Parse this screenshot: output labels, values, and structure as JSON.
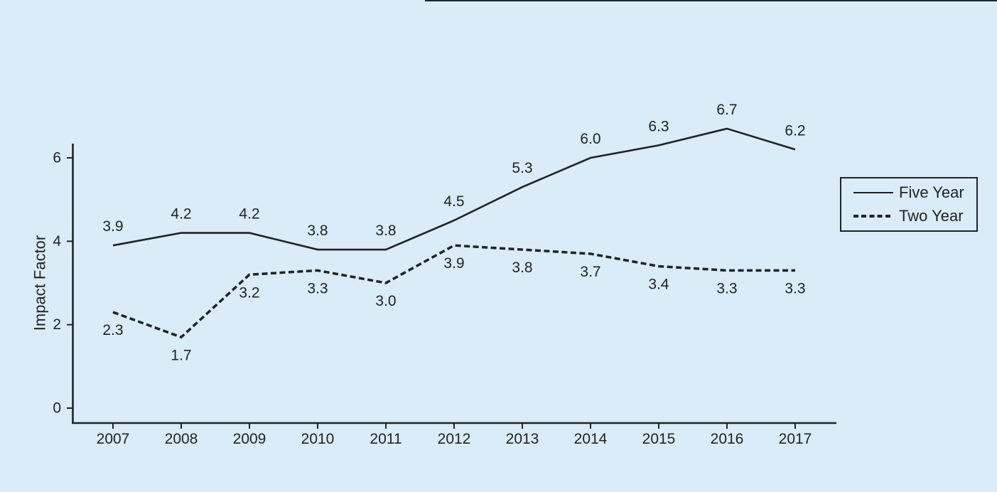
{
  "page": {
    "background_color": "#d9ecf7",
    "top_edge_bar_color": "#1a2a33",
    "ink_color": "#222222"
  },
  "chart_data": {
    "type": "line",
    "ylabel": "Impact Factor",
    "categories": [
      "2007",
      "2008",
      "2009",
      "2010",
      "2011",
      "2012",
      "2013",
      "2014",
      "2015",
      "2016",
      "2017"
    ],
    "y_ticks": [
      0,
      2,
      4,
      6
    ],
    "ylim": [
      0,
      6.3
    ],
    "grid": false,
    "legend_position": "right",
    "series": [
      {
        "name": "Five Year",
        "style": "solid",
        "label_position": "above",
        "values": [
          3.9,
          4.2,
          4.2,
          3.8,
          3.8,
          4.5,
          5.3,
          6.0,
          6.3,
          6.7,
          6.2
        ]
      },
      {
        "name": "Two Year",
        "style": "dashed",
        "label_position": "below",
        "values": [
          2.3,
          1.7,
          3.2,
          3.3,
          3.0,
          3.9,
          3.8,
          3.7,
          3.4,
          3.3,
          3.3
        ]
      }
    ]
  }
}
